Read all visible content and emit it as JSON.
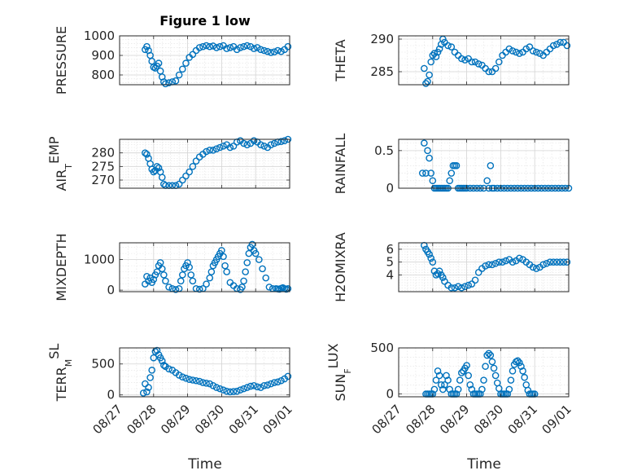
{
  "figure": {
    "title": "Figure 1 low",
    "xlabel": "Time",
    "marker_color": "#0072BD"
  },
  "chart_data": [
    {
      "type": "scatter",
      "ylabel": "PRESSURE",
      "xlim": [
        0,
        5
      ],
      "ylim": [
        750,
        1000
      ],
      "yticks": [
        800,
        900,
        1000
      ],
      "xticks": [
        0,
        1,
        2,
        3,
        4,
        5
      ],
      "xtick_labels": [
        "08/27",
        "08/28",
        "08/29",
        "08/30",
        "08/31",
        "09/01"
      ],
      "x": [
        0.75,
        0.8,
        0.85,
        0.9,
        0.95,
        1.0,
        1.05,
        1.1,
        1.15,
        1.2,
        1.25,
        1.3,
        1.35,
        1.45,
        1.55,
        1.65,
        1.75,
        1.85,
        1.95,
        2.05,
        2.15,
        2.25,
        2.35,
        2.45,
        2.55,
        2.65,
        2.75,
        2.85,
        2.95,
        3.05,
        3.15,
        3.25,
        3.35,
        3.45,
        3.55,
        3.65,
        3.75,
        3.85,
        3.95,
        4.05,
        4.15,
        4.25,
        4.35,
        4.45,
        4.55,
        4.65,
        4.75,
        4.85,
        4.95
      ],
      "y": [
        930,
        945,
        925,
        900,
        870,
        840,
        835,
        845,
        860,
        820,
        790,
        765,
        755,
        760,
        765,
        770,
        800,
        830,
        860,
        890,
        905,
        925,
        940,
        945,
        950,
        945,
        948,
        940,
        945,
        950,
        935,
        940,
        945,
        930,
        940,
        945,
        950,
        945,
        935,
        940,
        930,
        925,
        920,
        915,
        918,
        925,
        920,
        930,
        945
      ]
    },
    {
      "type": "scatter",
      "ylabel": "THETA",
      "xlim": [
        0,
        5
      ],
      "ylim": [
        283,
        290.5
      ],
      "yticks": [
        285,
        290
      ],
      "xticks": [
        0,
        1,
        2,
        3,
        4,
        5
      ],
      "xtick_labels": [
        "08/27",
        "08/28",
        "08/29",
        "08/30",
        "08/31",
        "09/01"
      ],
      "x": [
        0.75,
        0.8,
        0.85,
        0.9,
        0.95,
        1.0,
        1.05,
        1.1,
        1.15,
        1.2,
        1.25,
        1.3,
        1.35,
        1.45,
        1.55,
        1.65,
        1.75,
        1.85,
        1.95,
        2.05,
        2.15,
        2.25,
        2.35,
        2.45,
        2.55,
        2.65,
        2.75,
        2.85,
        2.95,
        3.05,
        3.15,
        3.25,
        3.35,
        3.45,
        3.55,
        3.65,
        3.75,
        3.85,
        3.95,
        4.05,
        4.15,
        4.25,
        4.35,
        4.45,
        4.55,
        4.65,
        4.75,
        4.85,
        4.95
      ],
      "y": [
        285.5,
        283.2,
        283.5,
        284.5,
        286.5,
        287.5,
        287.8,
        287.3,
        288,
        288.5,
        289.2,
        290,
        289.5,
        289,
        288.8,
        288,
        287.5,
        287,
        286.8,
        287,
        286.5,
        286.5,
        286.2,
        286,
        285.5,
        285,
        285,
        285.5,
        286.5,
        287.5,
        288,
        288.5,
        288.2,
        288,
        287.8,
        288,
        288.5,
        288.8,
        288.2,
        288,
        287.8,
        287.5,
        288,
        288.5,
        289,
        289.2,
        289.5,
        289.5,
        289
      ]
    },
    {
      "type": "scatter",
      "ylabel": "AIR_TEMP",
      "xlim": [
        0,
        5
      ],
      "ylim": [
        267,
        285
      ],
      "yticks": [
        270,
        275,
        280
      ],
      "xticks": [
        0,
        1,
        2,
        3,
        4,
        5
      ],
      "xtick_labels": [
        "08/27",
        "08/28",
        "08/29",
        "08/30",
        "08/31",
        "09/01"
      ],
      "x": [
        0.75,
        0.8,
        0.85,
        0.9,
        0.95,
        1.0,
        1.05,
        1.1,
        1.15,
        1.2,
        1.25,
        1.3,
        1.35,
        1.45,
        1.55,
        1.65,
        1.75,
        1.85,
        1.95,
        2.05,
        2.15,
        2.25,
        2.35,
        2.45,
        2.55,
        2.65,
        2.75,
        2.85,
        2.95,
        3.05,
        3.15,
        3.25,
        3.35,
        3.45,
        3.55,
        3.65,
        3.75,
        3.85,
        3.95,
        4.05,
        4.15,
        4.25,
        4.35,
        4.45,
        4.55,
        4.65,
        4.75,
        4.85,
        4.95
      ],
      "y": [
        280,
        279.5,
        278,
        276,
        274,
        273,
        273.5,
        275,
        274.5,
        273,
        271,
        268.5,
        268,
        268,
        268,
        268,
        268.5,
        270,
        271.5,
        273,
        275,
        277,
        278.5,
        279.5,
        280.5,
        281,
        281,
        281.5,
        282,
        282.5,
        283,
        282,
        282.5,
        284,
        284.5,
        283.5,
        283,
        283.5,
        284.5,
        284,
        283,
        282.5,
        282,
        283,
        283.5,
        284,
        284.2,
        284.5,
        285
      ]
    },
    {
      "type": "scatter",
      "ylabel": "RAINFALL",
      "xlim": [
        0,
        5
      ],
      "ylim": [
        0,
        0.65
      ],
      "yticks": [
        0,
        0.5
      ],
      "xticks": [
        0,
        1,
        2,
        3,
        4,
        5
      ],
      "xtick_labels": [
        "08/27",
        "08/28",
        "08/29",
        "08/30",
        "08/31",
        "09/01"
      ],
      "x": [
        0.7,
        0.75,
        0.8,
        0.85,
        0.9,
        0.95,
        1.0,
        1.05,
        1.1,
        1.15,
        1.2,
        1.25,
        1.3,
        1.35,
        1.4,
        1.45,
        1.5,
        1.55,
        1.6,
        1.65,
        1.7,
        1.75,
        1.8,
        1.85,
        1.9,
        1.95,
        2.0,
        2.1,
        2.2,
        2.3,
        2.4,
        2.5,
        2.6,
        2.65,
        2.7,
        2.75,
        2.8,
        2.9,
        3.0,
        3.1,
        3.2,
        3.3,
        3.4,
        3.5,
        3.6,
        3.7,
        3.8,
        3.9,
        4.0,
        4.1,
        4.2,
        4.3,
        4.4,
        4.5,
        4.6,
        4.7,
        4.8,
        4.9,
        5.0
      ],
      "y": [
        0.2,
        0.6,
        0.2,
        0.5,
        0.4,
        0.2,
        0.1,
        0,
        0,
        0,
        0,
        0,
        0,
        0,
        0,
        0,
        0.1,
        0.2,
        0.3,
        0.3,
        0.3,
        0,
        0,
        0,
        0,
        0,
        0,
        0,
        0,
        0,
        0,
        0,
        0.1,
        0,
        0.3,
        0,
        0,
        0,
        0,
        0,
        0,
        0,
        0,
        0,
        0,
        0,
        0,
        0,
        0,
        0,
        0,
        0,
        0,
        0,
        0,
        0,
        0,
        0,
        0
      ]
    },
    {
      "type": "scatter",
      "ylabel": "MIXDEPTH",
      "xlim": [
        0,
        5
      ],
      "ylim": [
        -50,
        1550
      ],
      "yticks": [
        0,
        1000
      ],
      "xticks": [
        0,
        1,
        2,
        3,
        4,
        5
      ],
      "xtick_labels": [
        "08/27",
        "08/28",
        "08/29",
        "08/30",
        "08/31",
        "09/01"
      ],
      "x": [
        0.75,
        0.8,
        0.85,
        0.9,
        0.95,
        1.0,
        1.05,
        1.1,
        1.15,
        1.2,
        1.25,
        1.3,
        1.35,
        1.45,
        1.55,
        1.65,
        1.75,
        1.8,
        1.85,
        1.9,
        1.95,
        2.0,
        2.05,
        2.1,
        2.15,
        2.25,
        2.35,
        2.45,
        2.55,
        2.65,
        2.7,
        2.75,
        2.8,
        2.85,
        2.9,
        2.95,
        3.0,
        3.05,
        3.1,
        3.15,
        3.25,
        3.35,
        3.45,
        3.55,
        3.6,
        3.65,
        3.7,
        3.75,
        3.8,
        3.85,
        3.9,
        3.95,
        4.0,
        4.1,
        4.2,
        4.3,
        4.4,
        4.5,
        4.6,
        4.65,
        4.7,
        4.75,
        4.8,
        4.85,
        4.9,
        4.95
      ],
      "y": [
        200,
        450,
        300,
        400,
        250,
        350,
        500,
        600,
        800,
        900,
        700,
        500,
        300,
        100,
        50,
        20,
        50,
        300,
        500,
        700,
        800,
        900,
        750,
        500,
        300,
        50,
        30,
        50,
        200,
        400,
        600,
        800,
        900,
        1000,
        1100,
        1200,
        1300,
        1100,
        800,
        600,
        250,
        150,
        50,
        20,
        100,
        300,
        600,
        900,
        1200,
        1400,
        1500,
        1300,
        1200,
        1000,
        700,
        400,
        100,
        50,
        50,
        40,
        30,
        60,
        80,
        50,
        30,
        50
      ]
    },
    {
      "type": "scatter",
      "ylabel": "H2OMIXRA",
      "xlim": [
        0,
        5
      ],
      "ylim": [
        2.7,
        6.5
      ],
      "yticks": [
        4,
        5,
        6
      ],
      "xticks": [
        0,
        1,
        2,
        3,
        4,
        5
      ],
      "xtick_labels": [
        "08/27",
        "08/28",
        "08/29",
        "08/30",
        "08/31",
        "09/01"
      ],
      "x": [
        0.75,
        0.8,
        0.85,
        0.9,
        0.95,
        1.0,
        1.05,
        1.1,
        1.15,
        1.2,
        1.25,
        1.3,
        1.35,
        1.45,
        1.55,
        1.65,
        1.75,
        1.85,
        1.95,
        2.05,
        2.15,
        2.25,
        2.35,
        2.45,
        2.55,
        2.65,
        2.75,
        2.85,
        2.95,
        3.05,
        3.15,
        3.25,
        3.35,
        3.45,
        3.55,
        3.65,
        3.75,
        3.85,
        3.95,
        4.05,
        4.15,
        4.25,
        4.35,
        4.45,
        4.55,
        4.65,
        4.75,
        4.85,
        4.95
      ],
      "y": [
        6.3,
        6.0,
        5.8,
        5.6,
        5.3,
        5.0,
        4.3,
        4.0,
        4.1,
        4.3,
        4.0,
        3.8,
        3.5,
        3.2,
        3.0,
        3.0,
        3.1,
        3.0,
        3.1,
        3.2,
        3.3,
        3.6,
        4.2,
        4.5,
        4.7,
        4.8,
        4.8,
        4.9,
        5.0,
        5.0,
        5.1,
        5.2,
        5.0,
        5.1,
        5.3,
        5.2,
        5.0,
        4.8,
        4.6,
        4.5,
        4.6,
        4.8,
        4.9,
        5.0,
        5.0,
        5.0,
        5.0,
        5.0,
        5.0
      ]
    },
    {
      "type": "scatter",
      "ylabel": "TERR_MSL",
      "xlim": [
        0,
        5
      ],
      "ylim": [
        -30,
        760
      ],
      "yticks": [
        0,
        500
      ],
      "xticks": [
        0,
        1,
        2,
        3,
        4,
        5
      ],
      "xtick_labels": [
        "08/27",
        "08/28",
        "08/29",
        "08/30",
        "08/31",
        "09/01"
      ],
      "x": [
        0.7,
        0.75,
        0.8,
        0.85,
        0.9,
        0.95,
        1.0,
        1.05,
        1.1,
        1.15,
        1.2,
        1.25,
        1.3,
        1.35,
        1.45,
        1.55,
        1.65,
        1.75,
        1.85,
        1.95,
        2.05,
        2.15,
        2.25,
        2.35,
        2.45,
        2.55,
        2.65,
        2.75,
        2.85,
        2.95,
        3.05,
        3.15,
        3.25,
        3.35,
        3.45,
        3.55,
        3.65,
        3.75,
        3.85,
        3.95,
        4.05,
        4.15,
        4.25,
        4.35,
        4.45,
        4.55,
        4.65,
        4.75,
        4.85,
        4.95
      ],
      "y": [
        30,
        180,
        50,
        120,
        280,
        400,
        600,
        700,
        720,
        650,
        600,
        550,
        480,
        460,
        420,
        400,
        360,
        320,
        290,
        270,
        250,
        240,
        230,
        220,
        200,
        190,
        180,
        150,
        120,
        100,
        80,
        60,
        50,
        55,
        60,
        80,
        100,
        120,
        140,
        150,
        130,
        120,
        150,
        160,
        180,
        200,
        210,
        230,
        260,
        300
      ]
    },
    {
      "type": "scatter",
      "ylabel": "SUN_FLUX",
      "xlim": [
        0,
        5
      ],
      "ylim": [
        -30,
        500
      ],
      "yticks": [
        0,
        500
      ],
      "xticks": [
        0,
        1,
        2,
        3,
        4,
        5
      ],
      "xtick_labels": [
        "08/27",
        "08/28",
        "08/29",
        "08/30",
        "08/31",
        "09/01"
      ],
      "x": [
        0.8,
        0.85,
        0.9,
        0.95,
        1.0,
        1.05,
        1.1,
        1.15,
        1.2,
        1.25,
        1.3,
        1.35,
        1.4,
        1.45,
        1.5,
        1.55,
        1.6,
        1.65,
        1.7,
        1.75,
        1.8,
        1.85,
        1.9,
        1.95,
        2.0,
        2.05,
        2.1,
        2.15,
        2.2,
        2.25,
        2.3,
        2.35,
        2.4,
        2.45,
        2.5,
        2.55,
        2.6,
        2.65,
        2.7,
        2.75,
        2.8,
        2.85,
        2.9,
        2.95,
        3.0,
        3.05,
        3.1,
        3.15,
        3.2,
        3.25,
        3.3,
        3.35,
        3.4,
        3.45,
        3.5,
        3.55,
        3.6,
        3.65,
        3.7,
        3.75,
        3.8,
        3.85,
        3.9,
        3.95,
        4.0
      ],
      "y": [
        0,
        0,
        0,
        0,
        0,
        50,
        150,
        250,
        200,
        100,
        50,
        100,
        200,
        150,
        50,
        0,
        0,
        0,
        0,
        50,
        150,
        230,
        250,
        280,
        310,
        200,
        100,
        50,
        0,
        0,
        0,
        0,
        0,
        50,
        150,
        300,
        420,
        440,
        420,
        350,
        280,
        200,
        120,
        60,
        0,
        0,
        0,
        0,
        0,
        50,
        150,
        250,
        320,
        350,
        360,
        340,
        300,
        250,
        180,
        100,
        40,
        0,
        0,
        0,
        0
      ]
    }
  ]
}
